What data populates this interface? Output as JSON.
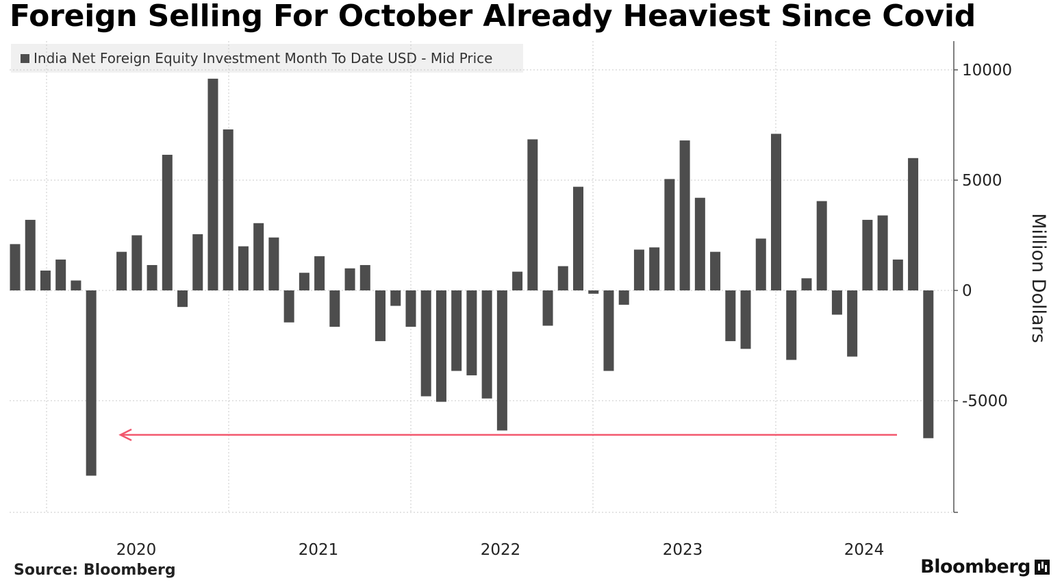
{
  "header": {
    "title": "Foreign Selling For October Already Heaviest Since Covid"
  },
  "legend": {
    "label": "India Net Foreign Equity Investment Month To Date USD - Mid Price"
  },
  "footer": {
    "source": "Source: Bloomberg",
    "brand": "Bloomberg"
  },
  "colors": {
    "bar": "#4d4d4d",
    "arrow": "#f2576d",
    "grid": "#c8c8c8"
  },
  "chart_data": {
    "type": "bar",
    "title": "Foreign Selling For October Already Heaviest Since Covid",
    "ylabel": "Million Dollars",
    "ylim": [
      -10000,
      11000
    ],
    "yticks": [
      10000,
      5000,
      0,
      -5000
    ],
    "xtick_labels": [
      "2020",
      "2021",
      "2022",
      "2023",
      "2024"
    ],
    "series": [
      {
        "name": "India Net Foreign Equity Investment Month To Date USD - Mid Price",
        "values": [
          2100,
          3200,
          900,
          1400,
          450,
          -8400,
          0,
          1750,
          2500,
          1150,
          6150,
          -750,
          2550,
          9600,
          7300,
          2000,
          3050,
          2400,
          -1450,
          800,
          1550,
          -1650,
          1000,
          1150,
          -2300,
          -700,
          -1650,
          -4800,
          -5050,
          -3650,
          -3850,
          -4900,
          -6350,
          850,
          6850,
          -1600,
          1100,
          4700,
          -150,
          -3650,
          -650,
          1850,
          1950,
          5050,
          6800,
          4200,
          1750,
          -2300,
          -2650,
          2350,
          7100,
          -3150,
          550,
          4050,
          -1100,
          -3000,
          3200,
          3400,
          1400,
          6000,
          -6700
        ]
      }
    ],
    "annotations": [
      {
        "type": "arrow",
        "color": "#f2576d",
        "from_index": 58,
        "to_index": 7,
        "value": -6550
      }
    ]
  }
}
